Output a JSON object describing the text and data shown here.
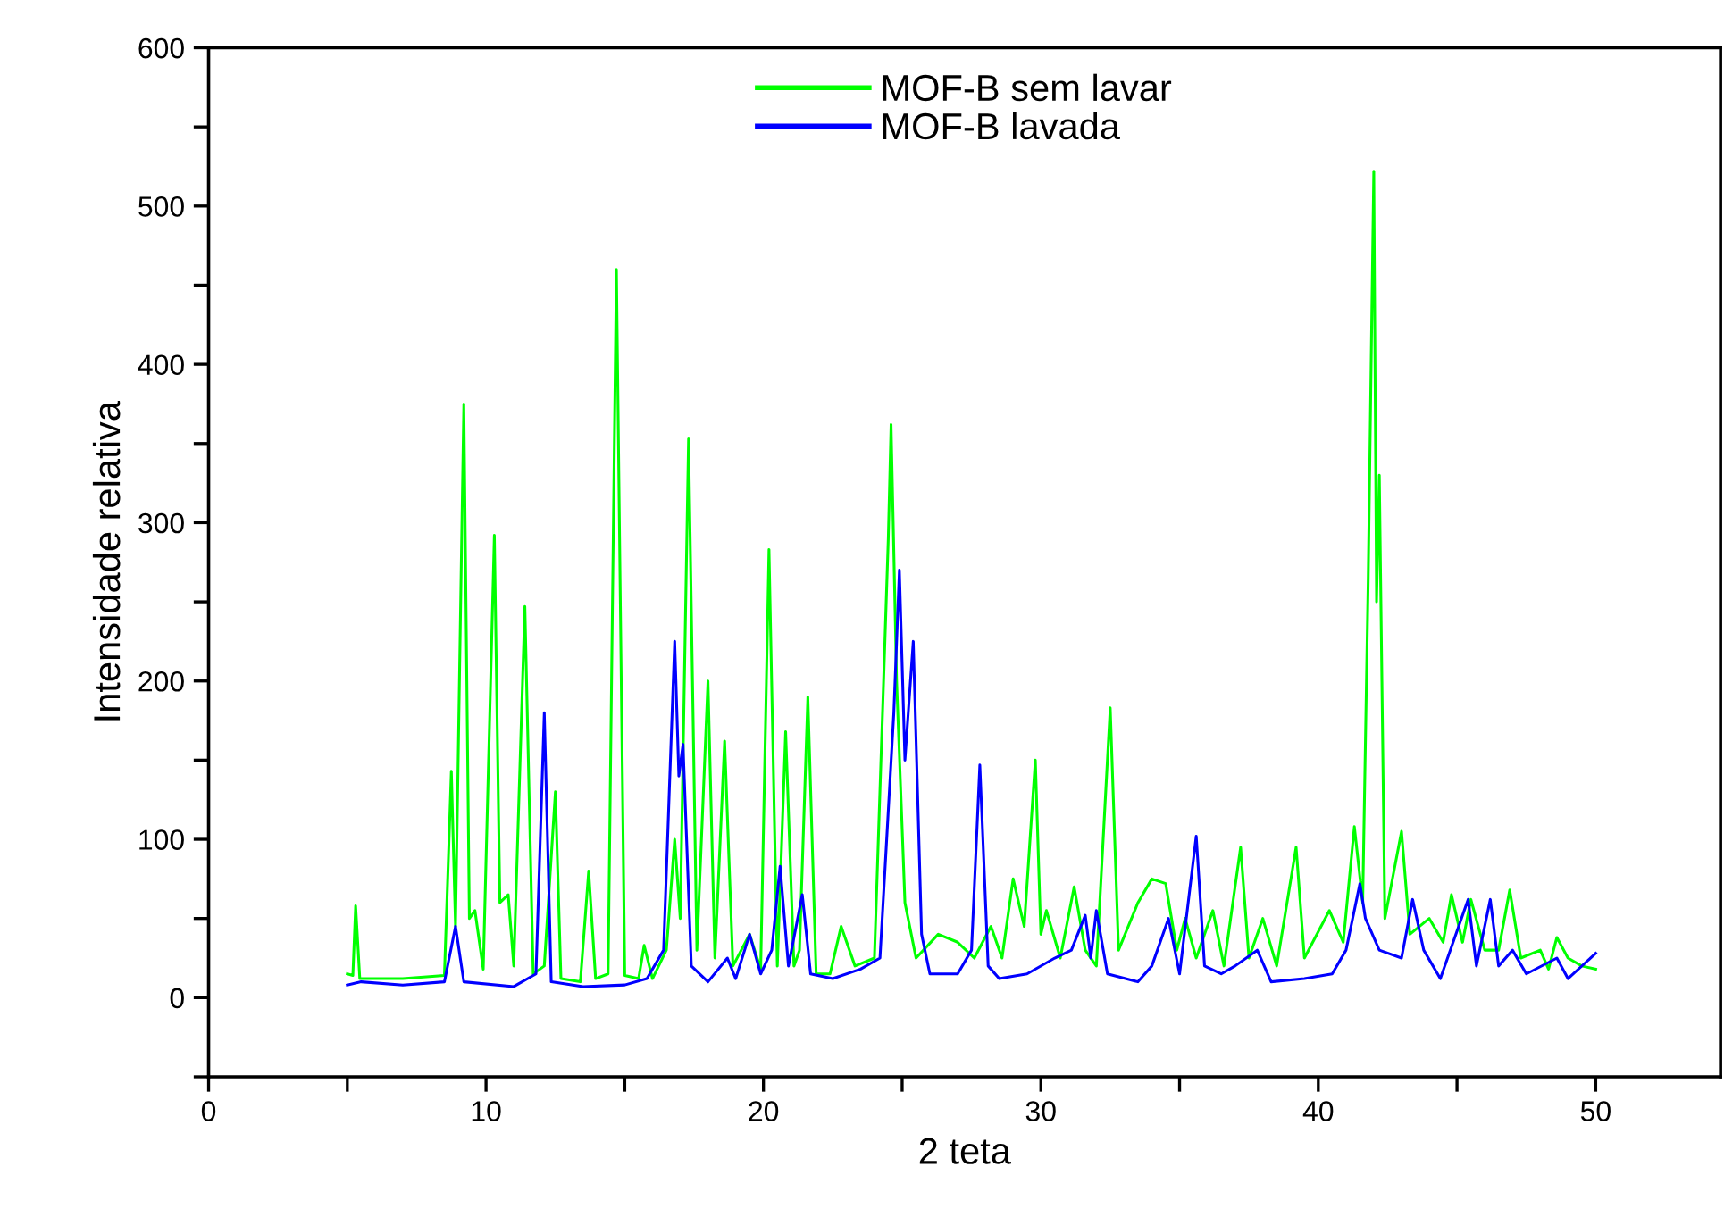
{
  "chart_data": {
    "type": "line",
    "xlabel": "2 teta",
    "ylabel": "Intensidade relativa",
    "xlim": [
      0,
      54.5
    ],
    "ylim": [
      -50,
      600
    ],
    "xticks": [
      0,
      {
        "value": 5,
        "label": null
      },
      10,
      {
        "value": 15,
        "label": null
      },
      20,
      {
        "value": 25,
        "label": null
      },
      30,
      {
        "value": 35,
        "label": null
      },
      40,
      {
        "value": 45,
        "label": null
      },
      50
    ],
    "yticks": [
      {
        "value": -50,
        "label": null
      },
      0,
      {
        "value": 50,
        "label": null
      },
      100,
      {
        "value": 150,
        "label": null
      },
      200,
      {
        "value": 250,
        "label": null
      },
      300,
      {
        "value": 350,
        "label": null
      },
      400,
      {
        "value": 450,
        "label": null
      },
      500,
      {
        "value": 550,
        "label": null
      },
      600
    ],
    "grid": false,
    "legend": "top",
    "marker": "none",
    "line_style": "solid",
    "series": [
      {
        "name": "MOF-B sem lavar",
        "color": "#00ff00",
        "x": [
          5.0,
          5.2,
          5.3,
          5.45,
          7.0,
          8.5,
          8.75,
          8.9,
          9.2,
          9.4,
          9.6,
          9.9,
          10.3,
          10.5,
          10.8,
          11.0,
          11.4,
          11.7,
          12.1,
          12.5,
          12.7,
          13.4,
          13.7,
          13.95,
          14.4,
          14.7,
          15.0,
          15.5,
          15.7,
          16.0,
          16.5,
          16.8,
          17.0,
          17.3,
          17.6,
          18.0,
          18.25,
          18.6,
          18.9,
          19.5,
          19.9,
          20.2,
          20.5,
          20.8,
          21.1,
          21.3,
          21.6,
          21.9,
          22.4,
          22.8,
          23.3,
          24.0,
          24.5,
          24.6,
          24.8,
          25.1,
          25.5,
          26.3,
          27.0,
          27.6,
          28.2,
          28.6,
          29.0,
          29.4,
          29.8,
          30.0,
          30.2,
          30.7,
          31.2,
          31.6,
          32.0,
          32.5,
          32.8,
          33.5,
          34.0,
          34.5,
          34.9,
          35.2,
          35.6,
          36.2,
          36.6,
          37.2,
          37.5,
          38.0,
          38.5,
          39.2,
          39.5,
          40.4,
          40.9,
          41.3,
          41.6,
          41.8,
          42.0,
          42.1,
          42.2,
          42.4,
          43.0,
          43.3,
          44.0,
          44.5,
          44.8,
          45.2,
          45.5,
          46.0,
          46.5,
          46.9,
          47.3,
          48.0,
          48.3,
          48.6,
          49.0,
          49.5,
          50.0
        ],
        "values": [
          15,
          14,
          58,
          12,
          12,
          14,
          143,
          45,
          375,
          50,
          55,
          18,
          292,
          60,
          65,
          20,
          247,
          15,
          20,
          130,
          12,
          10,
          80,
          12,
          15,
          460,
          14,
          12,
          33,
          12,
          30,
          100,
          50,
          353,
          30,
          200,
          25,
          162,
          20,
          40,
          18,
          283,
          20,
          168,
          20,
          30,
          190,
          15,
          15,
          45,
          20,
          25,
          290,
          362,
          200,
          60,
          25,
          40,
          35,
          25,
          45,
          25,
          75,
          45,
          150,
          40,
          55,
          25,
          70,
          30,
          20,
          183,
          30,
          60,
          75,
          72,
          30,
          50,
          25,
          55,
          20,
          95,
          25,
          50,
          20,
          95,
          25,
          55,
          35,
          108,
          60,
          265,
          522,
          250,
          330,
          50,
          105,
          40,
          50,
          35,
          65,
          35,
          62,
          30,
          30,
          68,
          25,
          30,
          18,
          38,
          25,
          20,
          18
        ]
      },
      {
        "name": "MOF-B lavada",
        "color": "#0000ff",
        "x": [
          5.0,
          5.5,
          7.0,
          8.5,
          8.9,
          9.2,
          11.0,
          11.8,
          12.1,
          12.35,
          13.5,
          15.0,
          15.8,
          16.4,
          16.8,
          16.95,
          17.1,
          17.4,
          18.0,
          18.7,
          19.0,
          19.5,
          19.9,
          20.3,
          20.6,
          20.9,
          21.4,
          21.7,
          22.5,
          23.5,
          24.2,
          24.7,
          24.9,
          25.1,
          25.4,
          25.7,
          26.0,
          27.0,
          27.5,
          27.8,
          28.1,
          28.5,
          29.5,
          30.5,
          31.1,
          31.6,
          31.8,
          32.0,
          32.4,
          33.5,
          34.0,
          34.6,
          35.0,
          35.6,
          35.9,
          36.5,
          37.0,
          37.8,
          38.3,
          39.5,
          40.5,
          41.0,
          41.5,
          41.7,
          42.2,
          43.0,
          43.4,
          43.8,
          44.4,
          45.4,
          45.7,
          46.2,
          46.5,
          47.0,
          47.5,
          48.6,
          49.0,
          50.0
        ],
        "values": [
          8,
          10,
          8,
          10,
          45,
          10,
          7,
          15,
          180,
          10,
          7,
          8,
          12,
          30,
          225,
          140,
          160,
          20,
          10,
          25,
          12,
          40,
          15,
          30,
          83,
          20,
          65,
          15,
          12,
          18,
          25,
          180,
          270,
          150,
          225,
          40,
          15,
          15,
          30,
          147,
          20,
          12,
          15,
          25,
          30,
          52,
          25,
          55,
          15,
          10,
          20,
          50,
          15,
          102,
          20,
          15,
          20,
          30,
          10,
          12,
          15,
          30,
          72,
          50,
          30,
          25,
          62,
          30,
          12,
          62,
          20,
          62,
          20,
          30,
          15,
          25,
          12,
          28
        ]
      }
    ]
  }
}
